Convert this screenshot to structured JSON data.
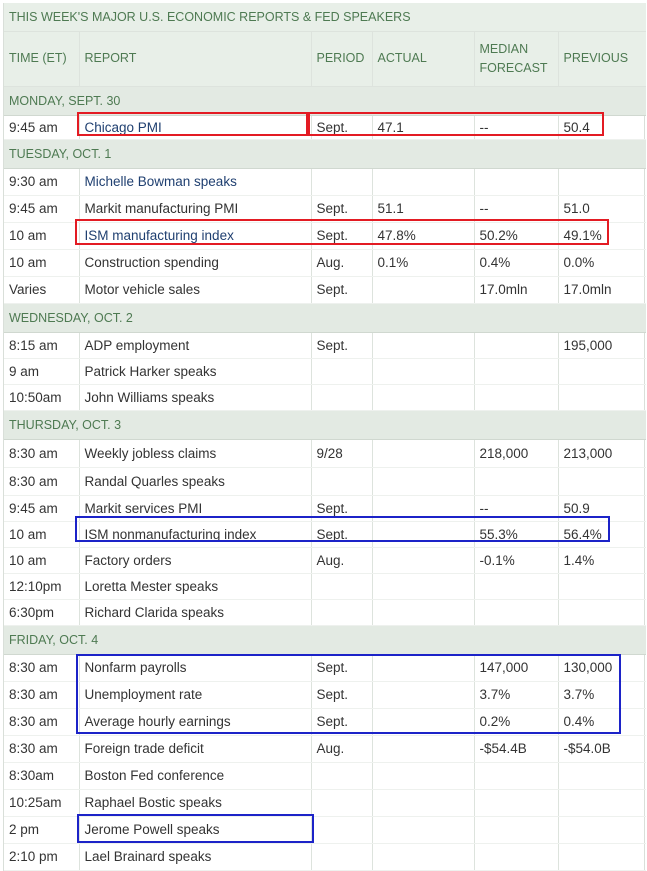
{
  "title": "THIS WEEK'S MAJOR U.S. ECONOMIC REPORTS & FED SPEAKERS",
  "columns": {
    "time": "TIME (ET)",
    "report": "REPORT",
    "period": "PERIOD",
    "actual": "ACTUAL",
    "median_line1": "MEDIAN",
    "median_line2": "FORECAST",
    "previous": "PREVIOUS"
  },
  "days": [
    {
      "label": "MONDAY, SEPT. 30",
      "rows": [
        {
          "time": "9:45 am",
          "report": "Chicago PMI",
          "period": "Sept.",
          "actual": "47.1",
          "forecast": "--",
          "previous": "50.4",
          "link": true
        }
      ]
    },
    {
      "label": "TUESDAY, OCT. 1",
      "rows": [
        {
          "time": "9:30 am",
          "report": "Michelle Bowman speaks",
          "period": "",
          "actual": "",
          "forecast": "",
          "previous": "",
          "link": true
        },
        {
          "time": "9:45 am",
          "report": "Markit manufacturing PMI",
          "period": "Sept.",
          "actual": "51.1",
          "forecast": "--",
          "previous": "51.0",
          "link": false
        },
        {
          "time": "10 am",
          "report": "ISM manufacturing index",
          "period": "Sept.",
          "actual": "47.8%",
          "forecast": "50.2%",
          "previous": "49.1%",
          "link": true
        },
        {
          "time": "10 am",
          "report": "Construction spending",
          "period": "Aug.",
          "actual": "0.1%",
          "forecast": "0.4%",
          "previous": "0.0%",
          "link": false
        },
        {
          "time": "Varies",
          "report": "Motor vehicle sales",
          "period": "Sept.",
          "actual": "",
          "forecast": "17.0mln",
          "previous": "17.0mln",
          "link": false
        }
      ]
    },
    {
      "label": "WEDNESDAY, OCT. 2",
      "rows": [
        {
          "time": "8:15 am",
          "report": "ADP employment",
          "period": "Sept.",
          "actual": "",
          "forecast": "",
          "previous": "195,000",
          "link": false
        },
        {
          "time": "9 am",
          "report": "Patrick Harker speaks",
          "period": "",
          "actual": "",
          "forecast": "",
          "previous": "",
          "link": false
        },
        {
          "time": "10:50am",
          "report": "John Williams speaks",
          "period": "",
          "actual": "",
          "forecast": "",
          "previous": "",
          "link": false
        }
      ]
    },
    {
      "label": "THURSDAY, OCT. 3",
      "rows": [
        {
          "time": "8:30 am",
          "report": "Weekly jobless claims",
          "period": "9/28",
          "actual": "",
          "forecast": "218,000",
          "previous": "213,000",
          "link": false
        },
        {
          "time": "8:30 am",
          "report": "Randal Quarles speaks",
          "period": "",
          "actual": "",
          "forecast": "",
          "previous": "",
          "link": false
        },
        {
          "time": "9:45 am",
          "report": "Markit services PMI",
          "period": "Sept.",
          "actual": "",
          "forecast": "--",
          "previous": "50.9",
          "link": false
        },
        {
          "time": "10 am",
          "report": "ISM nonmanufacturing index",
          "period": "Sept.",
          "actual": "",
          "forecast": "55.3%",
          "previous": "56.4%",
          "link": false
        },
        {
          "time": "10 am",
          "report": "Factory orders",
          "period": "Aug.",
          "actual": "",
          "forecast": "-0.1%",
          "previous": "1.4%",
          "link": false
        },
        {
          "time": "12:10pm",
          "report": "Loretta Mester speaks",
          "period": "",
          "actual": "",
          "forecast": "",
          "previous": "",
          "link": false
        },
        {
          "time": "6:30pm",
          "report": "Richard Clarida speaks",
          "period": "",
          "actual": "",
          "forecast": "",
          "previous": "",
          "link": false
        }
      ]
    },
    {
      "label": "FRIDAY, OCT. 4",
      "rows": [
        {
          "time": "8:30 am",
          "report": "Nonfarm payrolls",
          "period": "Sept.",
          "actual": "",
          "forecast": "147,000",
          "previous": "130,000",
          "link": false
        },
        {
          "time": "8:30 am",
          "report": "Unemployment rate",
          "period": "Sept.",
          "actual": "",
          "forecast": "3.7%",
          "previous": "3.7%",
          "link": false
        },
        {
          "time": "8:30 am",
          "report": "Average hourly earnings",
          "period": "Sept.",
          "actual": "",
          "forecast": "0.2%",
          "previous": "0.4%",
          "link": false
        },
        {
          "time": "8:30 am",
          "report": "Foreign trade deficit",
          "period": "Aug.",
          "actual": "",
          "forecast": "-$54.4B",
          "previous": "-$54.0B",
          "link": false
        },
        {
          "time": "8:30am",
          "report": "Boston Fed conference",
          "period": "",
          "actual": "",
          "forecast": "",
          "previous": "",
          "link": false
        },
        {
          "time": "10:25am",
          "report": "Raphael Bostic speaks",
          "period": "",
          "actual": "",
          "forecast": "",
          "previous": "",
          "link": false
        },
        {
          "time": "2 pm",
          "report": "Jerome Powell speaks",
          "period": "",
          "actual": "",
          "forecast": "",
          "previous": "",
          "link": false
        },
        {
          "time": "2:10 pm",
          "report": "Lael Brainard speaks",
          "period": "",
          "actual": "",
          "forecast": "",
          "previous": "",
          "link": false
        }
      ]
    }
  ],
  "highlight_colors": {
    "red": "#e31b23",
    "blue": "#1c23c8"
  }
}
